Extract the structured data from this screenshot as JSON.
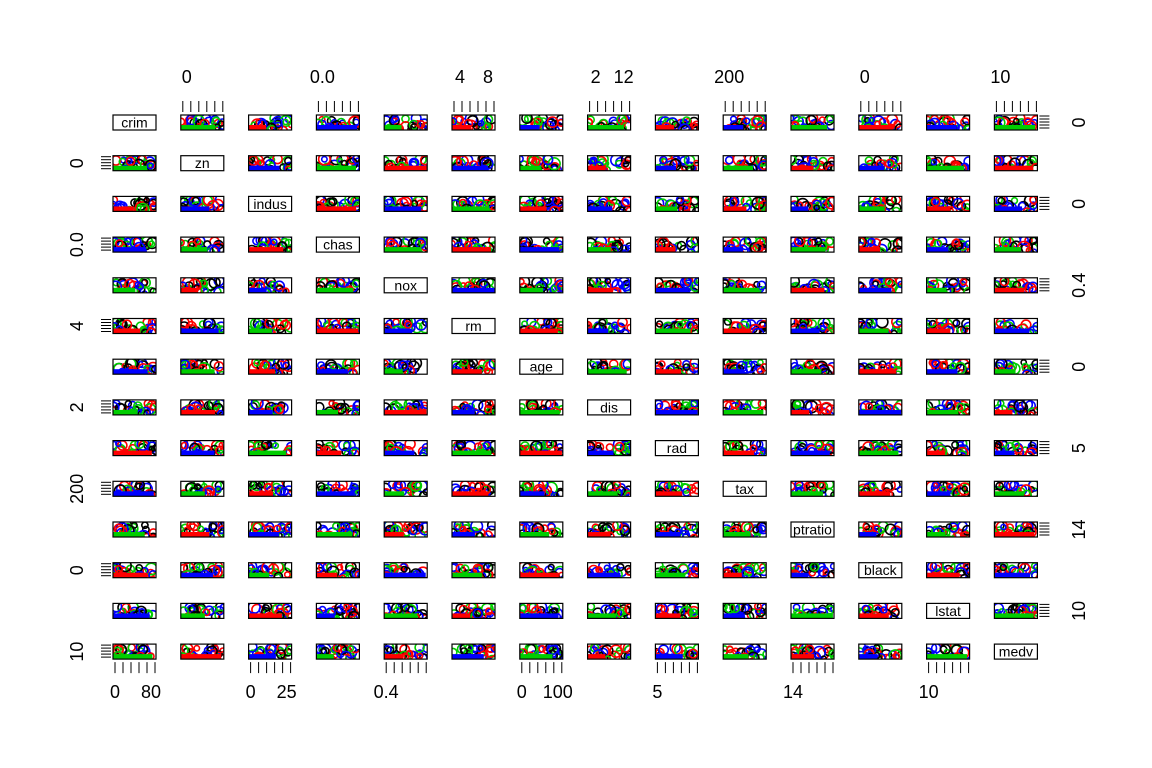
{
  "chart_data": {
    "type": "scatter",
    "subtype": "scatterplot-matrix",
    "variables": [
      "crim",
      "zn",
      "indus",
      "chas",
      "nox",
      "rm",
      "age",
      "dis",
      "rad",
      "tax",
      "ptratio",
      "black",
      "lstat",
      "medv"
    ],
    "variable_labels": [
      "crim",
      "zn",
      "indus",
      "chas",
      "nox",
      "rm",
      "age",
      "dis",
      "rad",
      "tax",
      "ptratio",
      "black",
      "lstat",
      "medv"
    ],
    "point_colors": [
      "#000000",
      "#ff0000",
      "#00cd00",
      "#0000ff"
    ],
    "marker": "open-circle",
    "axes": {
      "top": [
        {
          "column": 1,
          "labels": [
            "0"
          ]
        },
        {
          "column": 3,
          "labels": [
            "0.0"
          ]
        },
        {
          "column": 5,
          "labels": [
            "4",
            "8"
          ]
        },
        {
          "column": 7,
          "labels": [
            "2",
            "12"
          ]
        },
        {
          "column": 9,
          "labels": [
            "200"
          ]
        },
        {
          "column": 11,
          "labels": [
            "0"
          ]
        },
        {
          "column": 13,
          "labels": [
            "10"
          ]
        }
      ],
      "bottom": [
        {
          "column": 0,
          "labels": [
            "0",
            "80"
          ]
        },
        {
          "column": 2,
          "labels": [
            "0",
            "25"
          ]
        },
        {
          "column": 4,
          "labels": [
            "0.4"
          ]
        },
        {
          "column": 6,
          "labels": [
            "0",
            "100"
          ]
        },
        {
          "column": 8,
          "labels": [
            "5"
          ]
        },
        {
          "column": 10,
          "labels": [
            "14"
          ]
        },
        {
          "column": 12,
          "labels": [
            "10"
          ]
        }
      ],
      "left": [
        {
          "row": 1,
          "labels": [
            "0"
          ]
        },
        {
          "row": 3,
          "labels": [
            "0.0"
          ]
        },
        {
          "row": 5,
          "labels": [
            "4"
          ]
        },
        {
          "row": 7,
          "labels": [
            "2"
          ]
        },
        {
          "row": 9,
          "labels": [
            "200"
          ]
        },
        {
          "row": 11,
          "labels": [
            "0"
          ]
        },
        {
          "row": 13,
          "labels": [
            "10"
          ]
        }
      ],
      "right": [
        {
          "row": 0,
          "labels": [
            "0"
          ]
        },
        {
          "row": 2,
          "labels": [
            "0"
          ]
        },
        {
          "row": 4,
          "labels": [
            "0.4"
          ]
        },
        {
          "row": 6,
          "labels": [
            "0"
          ]
        },
        {
          "row": 8,
          "labels": [
            "5"
          ]
        },
        {
          "row": 10,
          "labels": [
            "14"
          ]
        },
        {
          "row": 12,
          "labels": [
            "10"
          ]
        }
      ]
    }
  }
}
